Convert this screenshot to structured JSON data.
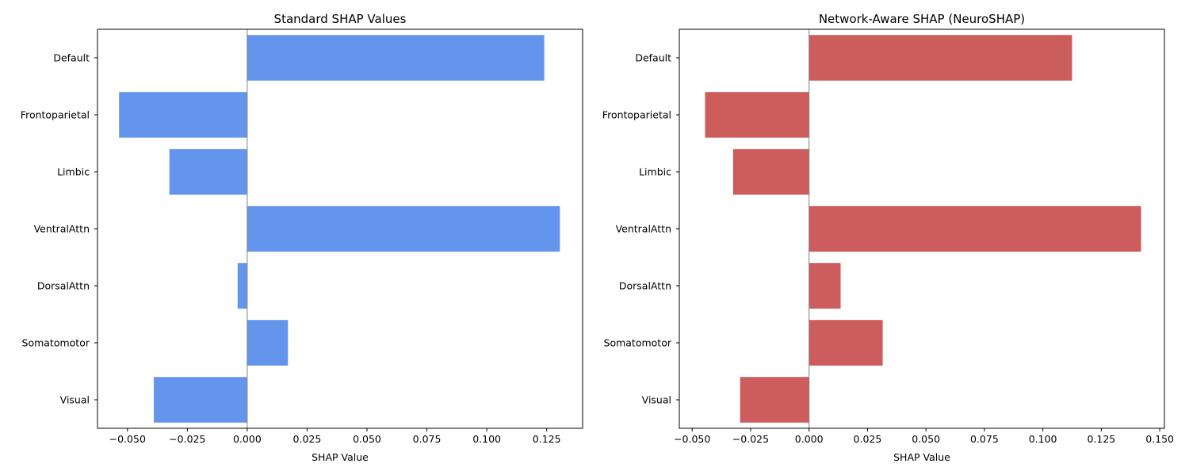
{
  "chart_data": [
    {
      "type": "bar",
      "orientation": "horizontal",
      "title": "Standard SHAP Values",
      "xlabel": "SHAP Value",
      "ylabel": "",
      "categories": [
        "Default",
        "Frontoparietal",
        "Limbic",
        "VentralAttn",
        "DorsalAttn",
        "Somatomotor",
        "Visual"
      ],
      "values": [
        0.124,
        -0.0535,
        -0.0325,
        0.1305,
        -0.004,
        0.017,
        -0.039
      ],
      "xlim": [
        -0.0625,
        0.14
      ],
      "xticks": [
        -0.05,
        -0.025,
        0.0,
        0.025,
        0.05,
        0.075,
        0.1,
        0.125
      ],
      "xtick_labels": [
        "−0.050",
        "−0.025",
        "0.000",
        "0.025",
        "0.050",
        "0.075",
        "0.100",
        "0.125"
      ],
      "bar_color": "#6495ED",
      "grid": false
    },
    {
      "type": "bar",
      "orientation": "horizontal",
      "title": "Network-Aware SHAP (NeuroSHAP)",
      "xlabel": "SHAP Value",
      "ylabel": "",
      "categories": [
        "Default",
        "Frontoparietal",
        "Limbic",
        "VentralAttn",
        "DorsalAttn",
        "Somatomotor",
        "Visual"
      ],
      "values": [
        0.1125,
        -0.0445,
        -0.0325,
        0.142,
        0.0135,
        0.0315,
        -0.0295
      ],
      "xlim": [
        -0.0555,
        0.152
      ],
      "xticks": [
        -0.05,
        -0.025,
        0.0,
        0.025,
        0.05,
        0.075,
        0.1,
        0.125,
        0.15
      ],
      "xtick_labels": [
        "−0.050",
        "−0.025",
        "0.000",
        "0.025",
        "0.050",
        "0.075",
        "0.100",
        "0.125",
        "0.150"
      ],
      "bar_color": "#CD5C5C",
      "grid": false
    }
  ]
}
